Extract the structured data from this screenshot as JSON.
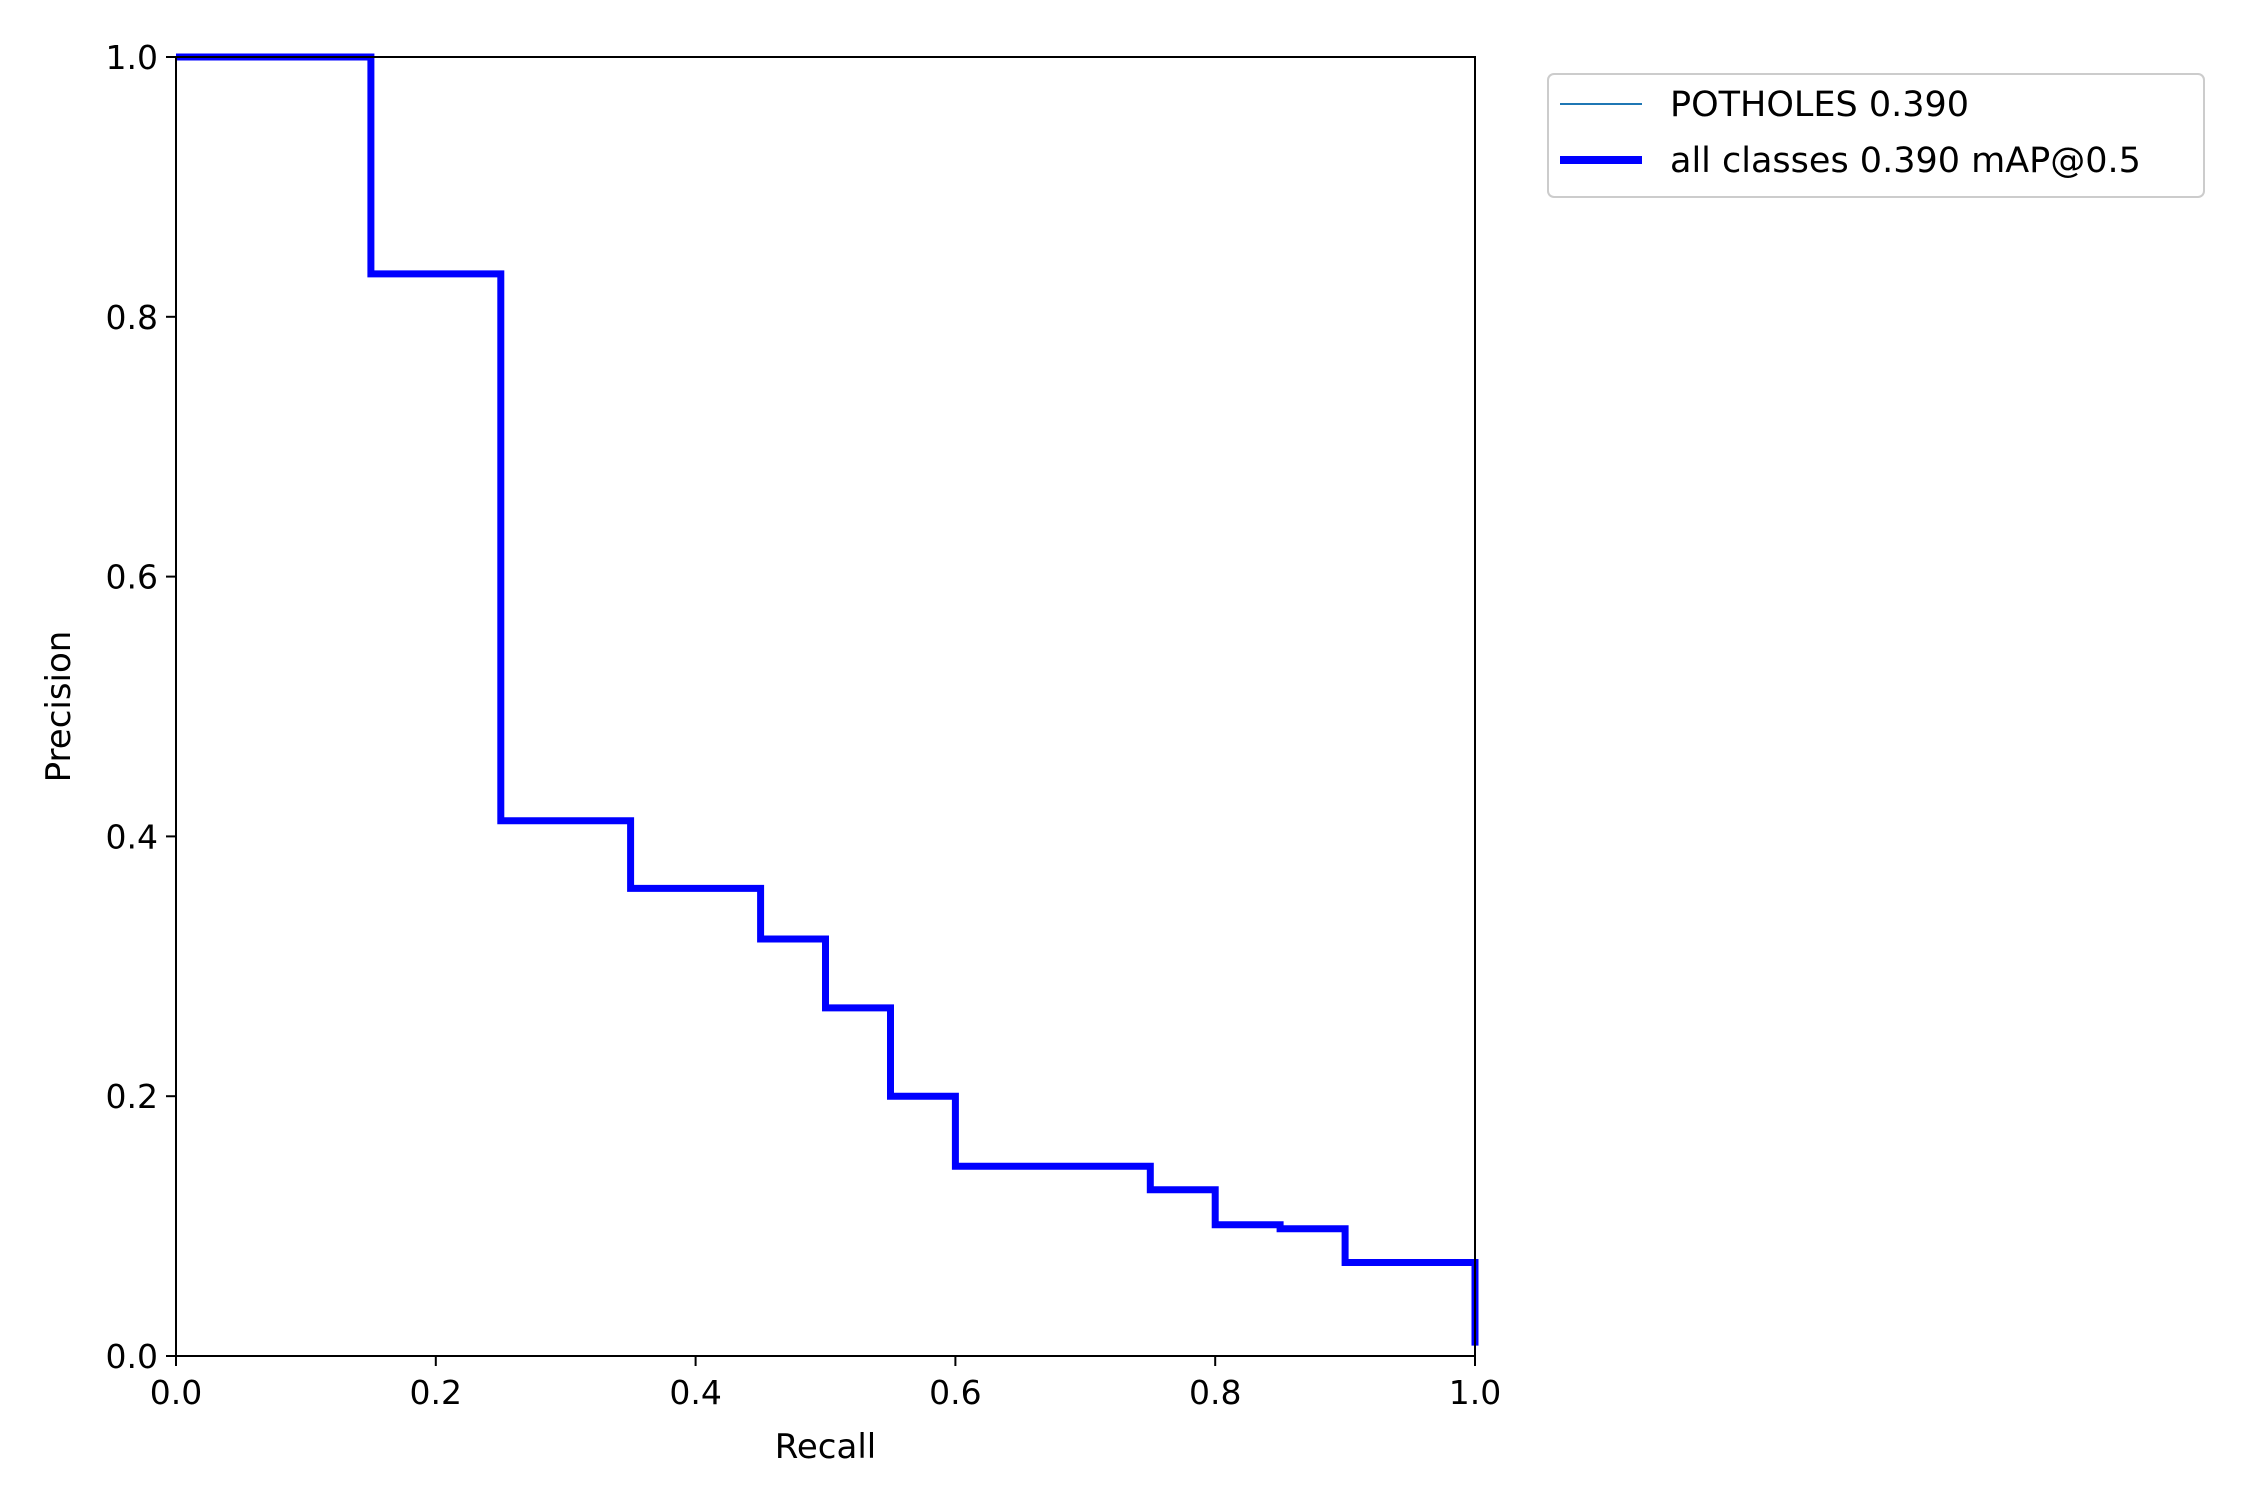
{
  "chart_data": {
    "type": "line",
    "xlabel": "Recall",
    "ylabel": "Precision",
    "xlim": [
      0.0,
      1.0
    ],
    "ylim": [
      0.0,
      1.0
    ],
    "xticks": [
      "0.0",
      "0.2",
      "0.4",
      "0.6",
      "0.8",
      "1.0"
    ],
    "yticks": [
      "0.0",
      "0.2",
      "0.4",
      "0.6",
      "0.8",
      "1.0"
    ],
    "grid": false,
    "legend_position": "outside-top-right",
    "series": [
      {
        "name": "POTHOLES 0.390",
        "color": "#1f77b4",
        "x": [
          0.0,
          0.15,
          0.15,
          0.25,
          0.25,
          0.35,
          0.35,
          0.45,
          0.45,
          0.5,
          0.5,
          0.55,
          0.55,
          0.6,
          0.6,
          0.75,
          0.75,
          0.8,
          0.8,
          0.85,
          0.85,
          0.9,
          0.9,
          1.0,
          1.0
        ],
        "y": [
          1.0,
          1.0,
          0.833,
          0.833,
          0.412,
          0.412,
          0.36,
          0.36,
          0.321,
          0.321,
          0.268,
          0.268,
          0.2,
          0.2,
          0.146,
          0.146,
          0.128,
          0.128,
          0.101,
          0.101,
          0.098,
          0.098,
          0.072,
          0.072,
          0.008
        ]
      },
      {
        "name": "all classes 0.390 mAP@0.5",
        "color": "#0000ff",
        "x": [
          0.0,
          0.15,
          0.15,
          0.25,
          0.25,
          0.35,
          0.35,
          0.45,
          0.45,
          0.5,
          0.5,
          0.55,
          0.55,
          0.6,
          0.6,
          0.75,
          0.75,
          0.8,
          0.8,
          0.85,
          0.85,
          0.9,
          0.9,
          1.0,
          1.0
        ],
        "y": [
          1.0,
          1.0,
          0.833,
          0.833,
          0.412,
          0.412,
          0.36,
          0.36,
          0.321,
          0.321,
          0.268,
          0.268,
          0.2,
          0.2,
          0.146,
          0.146,
          0.128,
          0.128,
          0.101,
          0.101,
          0.098,
          0.098,
          0.072,
          0.072,
          0.008
        ]
      }
    ]
  }
}
